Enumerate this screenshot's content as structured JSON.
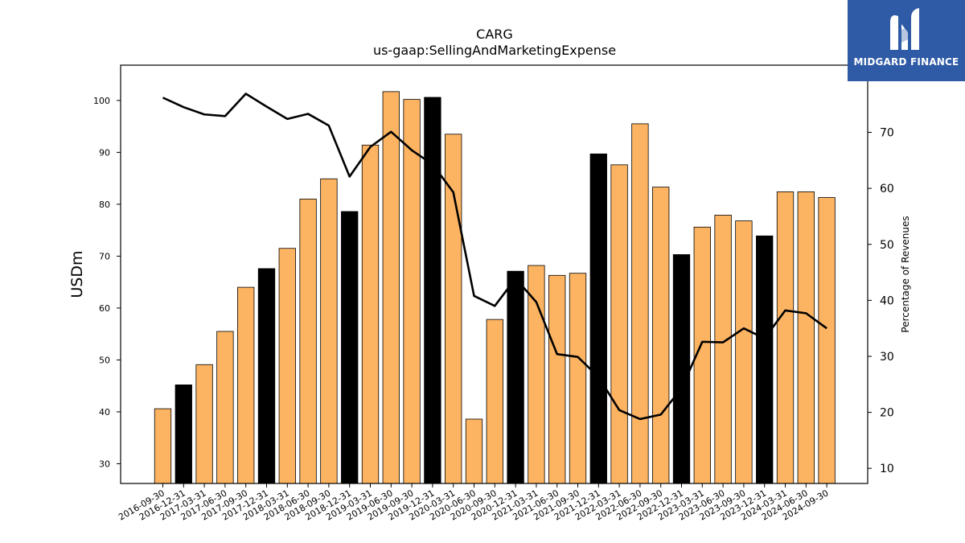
{
  "brand": {
    "name": "MIDGARD FINANCE",
    "logo_icon": "midgard-logo-icon",
    "background_color": "#2f5aa6"
  },
  "chart_data": {
    "type": "bar",
    "title": "CARG",
    "subtitle": "us-gaap:SellingAndMarketingExpense",
    "ylabel": "USDm",
    "y2label": "Percentage of Revenues",
    "ylim": [
      26.2,
      106.8
    ],
    "y2lim": [
      7.3,
      82.0
    ],
    "yticks": [
      30,
      40,
      50,
      60,
      70,
      80,
      90,
      100
    ],
    "y2ticks": [
      10,
      20,
      30,
      40,
      50,
      60,
      70
    ],
    "categories": [
      "2016-09-30",
      "2016-12-31",
      "2017-03-31",
      "2017-06-30",
      "2017-09-30",
      "2017-12-31",
      "2018-03-31",
      "2018-06-30",
      "2018-09-30",
      "2018-12-31",
      "2019-03-31",
      "2019-06-30",
      "2019-09-30",
      "2019-12-31",
      "2020-03-31",
      "2020-06-30",
      "2020-09-30",
      "2020-12-31",
      "2021-03-31",
      "2021-06-30",
      "2021-09-30",
      "2021-12-31",
      "2022-03-31",
      "2022-06-30",
      "2022-09-30",
      "2022-12-31",
      "2023-03-31",
      "2023-06-30",
      "2023-09-30",
      "2023-12-31",
      "2024-03-31",
      "2024-06-30",
      "2024-09-30"
    ],
    "bar_colors": {
      "quarter": "#fdb462",
      "year_end": "#000000"
    },
    "series": [
      {
        "type": "bar",
        "axis": "left",
        "values": [
          40.6,
          45.2,
          49.1,
          55.5,
          64.0,
          67.6,
          71.5,
          81.0,
          84.9,
          78.6,
          91.4,
          101.7,
          100.2,
          100.6,
          93.5,
          38.6,
          57.8,
          67.1,
          68.2,
          66.3,
          66.7,
          89.7,
          87.6,
          95.5,
          83.3,
          70.3,
          75.6,
          77.9,
          76.8,
          73.9,
          82.4,
          82.4,
          81.3
        ]
      },
      {
        "type": "line",
        "axis": "right",
        "color": "#000000",
        "values": [
          76.2,
          74.5,
          73.2,
          72.9,
          76.9,
          74.6,
          72.4,
          73.3,
          71.2,
          62.1,
          67.4,
          70.1,
          66.8,
          64.3,
          59.3,
          40.8,
          39.0,
          43.9,
          39.7,
          30.4,
          29.9,
          26.3,
          20.4,
          18.8,
          19.6,
          24.3,
          32.6,
          32.5,
          35.0,
          33.2,
          38.2,
          37.7,
          35.0
        ]
      }
    ]
  }
}
